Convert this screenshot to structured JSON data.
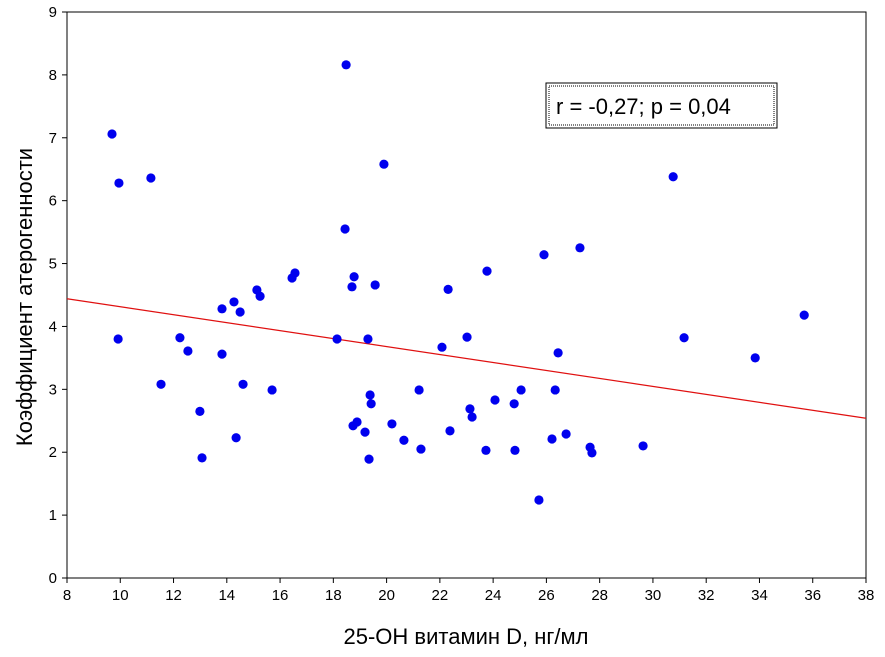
{
  "chart_data": {
    "type": "scatter",
    "title": "",
    "xlabel": "25-ОН витамин D, нг/мл",
    "ylabel": "Коэффициент атерогенности",
    "xlim": [
      8,
      38
    ],
    "ylim": [
      0,
      9
    ],
    "xticks": [
      8,
      10,
      12,
      14,
      16,
      18,
      20,
      22,
      24,
      26,
      28,
      30,
      32,
      34,
      36,
      38
    ],
    "yticks": [
      0,
      1,
      2,
      3,
      4,
      5,
      6,
      7,
      8,
      9
    ],
    "grid": false,
    "point_color": "#0000ee",
    "line_color": "#e01010",
    "annotation": "r = -0,27; p = 0,04",
    "regression": {
      "x": [
        8,
        38
      ],
      "y": [
        4.44,
        2.54
      ]
    },
    "points": [
      [
        9.69,
        7.06
      ],
      [
        9.95,
        6.28
      ],
      [
        9.92,
        3.8
      ],
      [
        11.15,
        6.36
      ],
      [
        11.53,
        3.08
      ],
      [
        12.24,
        3.82
      ],
      [
        12.54,
        3.61
      ],
      [
        12.99,
        2.65
      ],
      [
        13.07,
        1.91
      ],
      [
        13.82,
        4.28
      ],
      [
        13.82,
        3.56
      ],
      [
        14.27,
        4.39
      ],
      [
        14.5,
        4.23
      ],
      [
        14.35,
        2.23
      ],
      [
        14.61,
        3.08
      ],
      [
        15.13,
        4.58
      ],
      [
        15.25,
        4.48
      ],
      [
        15.7,
        2.99
      ],
      [
        16.45,
        4.77
      ],
      [
        16.56,
        4.85
      ],
      [
        18.14,
        3.8
      ],
      [
        18.48,
        8.16
      ],
      [
        18.44,
        5.55
      ],
      [
        18.7,
        4.63
      ],
      [
        18.78,
        4.79
      ],
      [
        18.74,
        2.42
      ],
      [
        18.89,
        2.48
      ],
      [
        19.19,
        2.32
      ],
      [
        19.3,
        3.8
      ],
      [
        19.38,
        2.91
      ],
      [
        19.42,
        2.77
      ],
      [
        19.34,
        1.89
      ],
      [
        19.57,
        4.66
      ],
      [
        19.9,
        6.58
      ],
      [
        20.2,
        2.45
      ],
      [
        20.65,
        2.19
      ],
      [
        21.22,
        2.99
      ],
      [
        21.29,
        2.05
      ],
      [
        22.08,
        3.67
      ],
      [
        22.31,
        4.59
      ],
      [
        22.38,
        2.34
      ],
      [
        23.02,
        3.83
      ],
      [
        23.13,
        2.69
      ],
      [
        23.21,
        2.56
      ],
      [
        23.77,
        4.88
      ],
      [
        23.73,
        2.03
      ],
      [
        24.07,
        2.83
      ],
      [
        24.79,
        2.77
      ],
      [
        24.82,
        2.03
      ],
      [
        25.05,
        2.99
      ],
      [
        25.72,
        1.24
      ],
      [
        25.91,
        5.14
      ],
      [
        26.21,
        2.21
      ],
      [
        26.33,
        2.99
      ],
      [
        26.44,
        3.58
      ],
      [
        26.74,
        2.29
      ],
      [
        27.26,
        5.25
      ],
      [
        27.64,
        2.08
      ],
      [
        27.71,
        1.99
      ],
      [
        29.63,
        2.1
      ],
      [
        30.76,
        6.38
      ],
      [
        31.17,
        3.82
      ],
      [
        33.84,
        3.5
      ],
      [
        35.68,
        4.18
      ]
    ]
  }
}
